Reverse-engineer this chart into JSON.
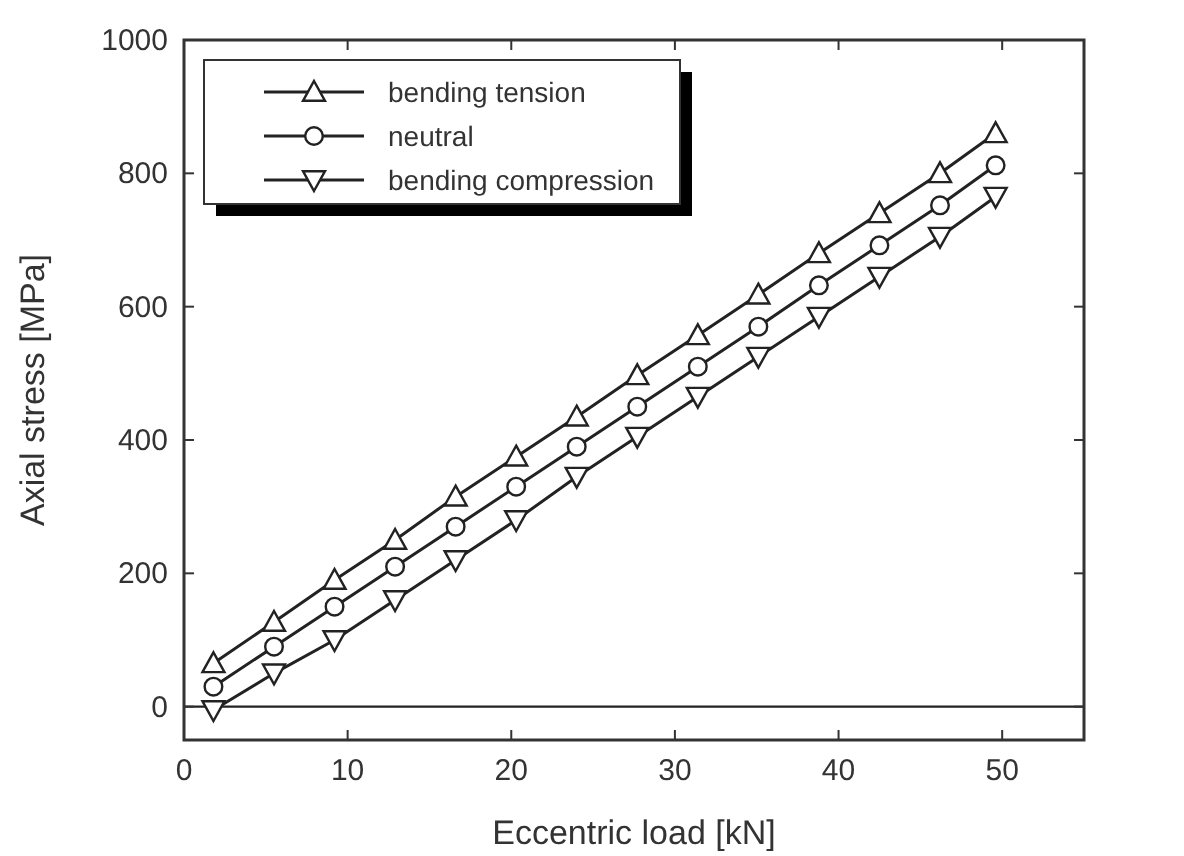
{
  "chart_data": {
    "type": "line",
    "xlabel": "Eccentric load [kN]",
    "ylabel": "Axial stress [MPa]",
    "x": [
      1.8,
      5.5,
      9.2,
      12.9,
      16.6,
      20.3,
      24.0,
      27.7,
      31.4,
      35.1,
      38.8,
      42.5,
      46.2,
      49.6
    ],
    "series": [
      {
        "name": "bending tension",
        "color": "#222222",
        "marker": "triangle",
        "values": [
          65,
          127,
          190,
          250,
          315,
          375,
          435,
          497,
          557,
          618,
          680,
          740,
          800,
          860
        ]
      },
      {
        "name": "neutral",
        "color": "#222222",
        "marker": "circle",
        "values": [
          30,
          90,
          150,
          210,
          270,
          330,
          390,
          450,
          510,
          570,
          632,
          692,
          752,
          812
        ]
      },
      {
        "name": "bending compression",
        "color": "#222222",
        "marker": "triangle-down",
        "values": [
          -5,
          50,
          100,
          160,
          220,
          280,
          345,
          405,
          465,
          525,
          585,
          645,
          705,
          765
        ]
      }
    ],
    "xlim": [
      0,
      55
    ],
    "xticks": [
      0,
      10,
      20,
      30,
      40,
      50
    ],
    "ylim": [
      -50,
      1000
    ],
    "yticks": [
      0,
      200,
      400,
      600,
      800,
      1000
    ],
    "ref_lines": [
      {
        "axis": "y",
        "value": 0,
        "color": "#222222"
      }
    ],
    "grid": false,
    "legend": "top left",
    "line_style": "solid"
  }
}
